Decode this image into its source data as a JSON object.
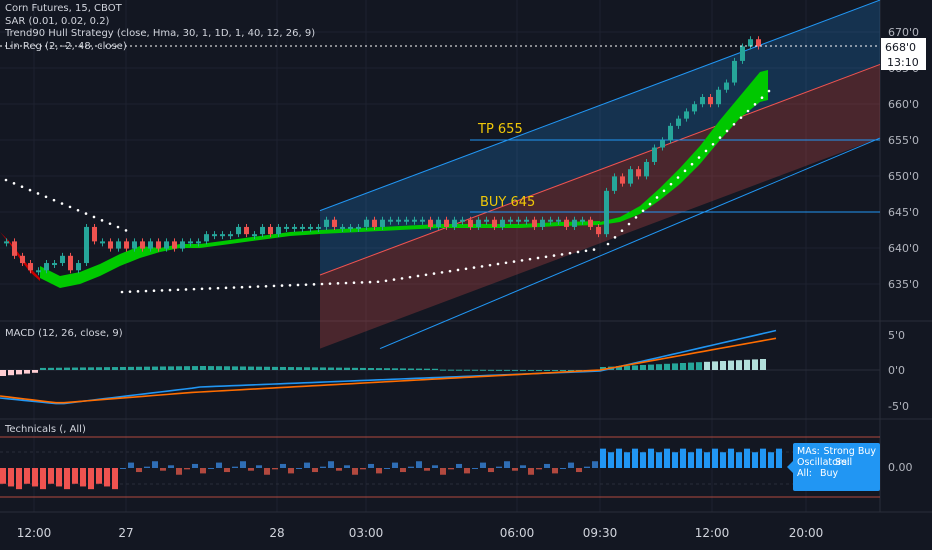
{
  "legend_main": [
    "Corn Futures, 15, CBOT",
    "SAR (0.01, 0.02, 0.2)",
    "Trend90 Hull Strategy (close, Hma, 30, 1, 1D, 1, 40, 12, 26, 9)",
    "Lin Reg (2, -2, 48, close)"
  ],
  "legend_macd": "MACD (12, 26, close, 9)",
  "legend_tech": "Technicals (, All)",
  "labels": {
    "tp": "TP 655",
    "buy": "BUY 645"
  },
  "price_tags": {
    "current": "668'0",
    "countdown": "13:10"
  },
  "technicals_pill": [
    {
      "key": "MAs:",
      "value": "Strong Buy"
    },
    {
      "key": "Oscillators:",
      "value": "Sell"
    },
    {
      "key": "All:",
      "value": "Buy"
    }
  ],
  "colors": {
    "up": "#26a69a",
    "down": "#ef5350",
    "hull_up": "#00c800",
    "hull_down": "#c80000",
    "macd": "#2196f3",
    "signal": "#ff6d00",
    "accent": "#2196f3"
  },
  "chart_data": [
    {
      "type": "candlestick",
      "title": "Corn Futures, 15, CBOT",
      "x_ticks": [
        "12:00",
        "27",
        "28",
        "03:00",
        "06:00",
        "09:30",
        "12:00",
        "20:00"
      ],
      "y_ticks": [
        "670'0",
        "665'0",
        "660'0",
        "655'0",
        "650'0",
        "645'0",
        "640'0",
        "635'0"
      ],
      "ylim": [
        631,
        673
      ],
      "horizontal_lines": [
        {
          "name": "TP 655",
          "value": 655
        },
        {
          "name": "BUY 645",
          "value": 645
        }
      ],
      "last_price": 668,
      "close": [
        641,
        639,
        638,
        637,
        637,
        638,
        638,
        639,
        637,
        638,
        643,
        641,
        641,
        640,
        641,
        640,
        641,
        640,
        641,
        640,
        641,
        640,
        641,
        641,
        641,
        642,
        642,
        642,
        642,
        643,
        642,
        642,
        643,
        642,
        643,
        643,
        643,
        643,
        643,
        643,
        644,
        643,
        643,
        643,
        643,
        644,
        643,
        644,
        644,
        644,
        644,
        644,
        644,
        643,
        644,
        643,
        644,
        644,
        643,
        644,
        644,
        643,
        644,
        644,
        644,
        644,
        643,
        644,
        644,
        644,
        643,
        644,
        644,
        643,
        642,
        648,
        650,
        649,
        651,
        650,
        652,
        654,
        655,
        657,
        658,
        659,
        660,
        661,
        660,
        662,
        663,
        666,
        668,
        669,
        668
      ]
    },
    {
      "type": "line",
      "title": "MACD (12, 26, close, 9)",
      "y_ticks": [
        "5'0",
        "0'0",
        "-5'0"
      ],
      "ylim": [
        -6.5,
        7
      ],
      "series_names": [
        "MACD",
        "Signal",
        "Histogram"
      ]
    },
    {
      "type": "bar",
      "title": "Technicals (, All)",
      "y_ticks": [
        "0.00"
      ],
      "ylim": [
        -1,
        1
      ]
    }
  ]
}
